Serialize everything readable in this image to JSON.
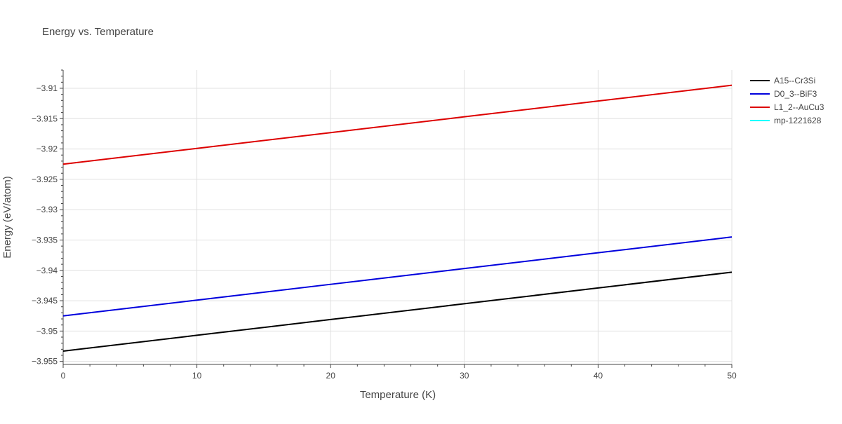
{
  "chart_data": {
    "type": "line",
    "title": "Energy vs. Temperature",
    "xlabel": "Temperature (K)",
    "ylabel": "Energy (eV/atom)",
    "xlim": [
      0,
      50
    ],
    "ylim": [
      -3.9555,
      -3.907
    ],
    "x_ticks": [
      0,
      10,
      20,
      30,
      40,
      50
    ],
    "x_tick_labels": [
      "0",
      "10",
      "20",
      "30",
      "40",
      "50"
    ],
    "y_ticks": [
      -3.955,
      -3.95,
      -3.945,
      -3.94,
      -3.935,
      -3.93,
      -3.925,
      -3.92,
      -3.915,
      -3.91
    ],
    "y_tick_labels": [
      "−3.955",
      "−3.95",
      "−3.945",
      "−3.94",
      "−3.935",
      "−3.93",
      "−3.925",
      "−3.92",
      "−3.915",
      "−3.91"
    ],
    "grid": true,
    "legend_position": "top-right",
    "series": [
      {
        "name": "A15--Cr3Si",
        "color": "#000000",
        "x": [
          0,
          10,
          20,
          30,
          40,
          50
        ],
        "values": [
          -3.9533,
          -3.9507,
          -3.9481,
          -3.9455,
          -3.9429,
          -3.9403
        ]
      },
      {
        "name": "D0_3--BiF3",
        "color": "#0000dd",
        "x": [
          0,
          10,
          20,
          30,
          40,
          50
        ],
        "values": [
          -3.9475,
          -3.9449,
          -3.9423,
          -3.9397,
          -3.9371,
          -3.9345
        ]
      },
      {
        "name": "L1_2--AuCu3",
        "color": "#dd0000",
        "x": [
          0,
          10,
          20,
          30,
          40,
          50
        ],
        "values": [
          -3.9225,
          -3.9199,
          -3.9173,
          -3.9147,
          -3.9121,
          -3.9095
        ]
      },
      {
        "name": "mp-1221628",
        "color": "#00ffff",
        "x": [],
        "values": []
      }
    ]
  }
}
